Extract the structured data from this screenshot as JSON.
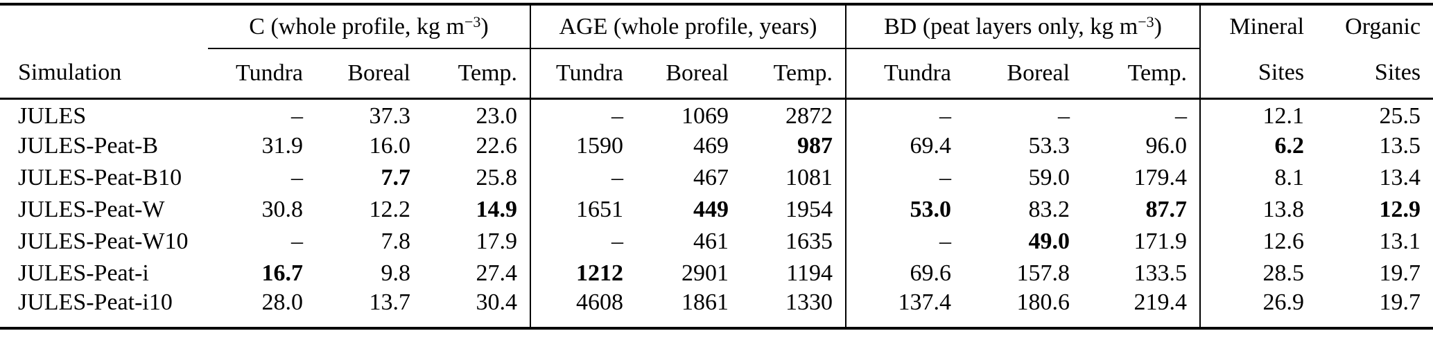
{
  "colors": {
    "text": "#000000",
    "background": "#ffffff",
    "rule": "#000000"
  },
  "table": {
    "row_header": {
      "label": "Simulation"
    },
    "groups": [
      {
        "label_pre": "C (whole profile, kg m",
        "label_sup": "−3",
        "label_post": ")",
        "subcols": [
          "Tundra",
          "Boreal",
          "Temp."
        ]
      },
      {
        "label_pre": "AGE (whole profile, years)",
        "label_sup": "",
        "label_post": "",
        "subcols": [
          "Tundra",
          "Boreal",
          "Temp."
        ]
      },
      {
        "label_pre": "BD (peat layers only, kg m",
        "label_sup": "−3",
        "label_post": ")",
        "subcols": [
          "Tundra",
          "Boreal",
          "Temp."
        ]
      }
    ],
    "site_cols": [
      {
        "line1": "Mineral",
        "line2": "Sites"
      },
      {
        "line1": "Organic",
        "line2": "Sites"
      }
    ],
    "rows": [
      {
        "sim": "JULES",
        "cells": [
          "–",
          "37.3",
          "23.0",
          "–",
          "1069",
          "2872",
          "–",
          "–",
          "–",
          "12.1",
          "25.5"
        ],
        "bold": []
      },
      {
        "sim": "JULES-Peat-B",
        "cells": [
          "31.9",
          "16.0",
          "22.6",
          "1590",
          "469",
          "987",
          "69.4",
          "53.3",
          "96.0",
          "6.2",
          "13.5"
        ],
        "bold": [
          5,
          9
        ]
      },
      {
        "sim": "JULES-Peat-B10",
        "cells": [
          "–",
          "7.7",
          "25.8",
          "–",
          "467",
          "1081",
          "–",
          "59.0",
          "179.4",
          "8.1",
          "13.4"
        ],
        "bold": [
          1
        ]
      },
      {
        "sim": "JULES-Peat-W",
        "cells": [
          "30.8",
          "12.2",
          "14.9",
          "1651",
          "449",
          "1954",
          "53.0",
          "83.2",
          "87.7",
          "13.8",
          "12.9"
        ],
        "bold": [
          2,
          4,
          6,
          8,
          10
        ]
      },
      {
        "sim": "JULES-Peat-W10",
        "cells": [
          "–",
          "7.8",
          "17.9",
          "–",
          "461",
          "1635",
          "–",
          "49.0",
          "171.9",
          "12.6",
          "13.1"
        ],
        "bold": [
          7
        ]
      },
      {
        "sim": "JULES-Peat-i",
        "cells": [
          "16.7",
          "9.8",
          "27.4",
          "1212",
          "2901",
          "1194",
          "69.6",
          "157.8",
          "133.5",
          "28.5",
          "19.7"
        ],
        "bold": [
          0,
          3
        ]
      },
      {
        "sim": "JULES-Peat-i10",
        "cells": [
          "28.0",
          "13.7",
          "30.4",
          "4608",
          "1861",
          "1330",
          "137.4",
          "180.6",
          "219.4",
          "26.9",
          "19.7"
        ],
        "bold": []
      }
    ]
  }
}
